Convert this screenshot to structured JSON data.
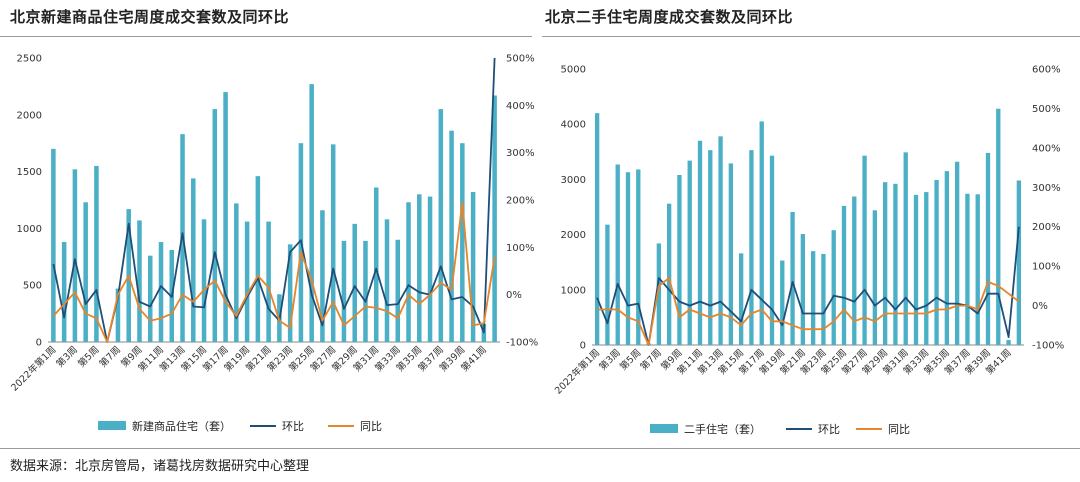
{
  "left_title": "北京新建商品住宅周度成交套数及同环比",
  "right_title": "北京二手住宅周度成交套数及同环比",
  "source": "数据来源：北京房管局，诸葛找房数据研究中心整理",
  "colors": {
    "bar": "#4bafc6",
    "mom": "#1f4e79",
    "yoy": "#e5852c"
  },
  "chart_data": [
    {
      "type": "bar",
      "title": "北京新建商品住宅周度成交套数及同环比",
      "categories": [
        "2022年第1周",
        "第2周",
        "第3周",
        "第4周",
        "第5周",
        "第6周",
        "第7周",
        "第8周",
        "第9周",
        "第10周",
        "第11周",
        "第12周",
        "第13周",
        "第14周",
        "第15周",
        "第16周",
        "第17周",
        "第18周",
        "第19周",
        "第20周",
        "第21周",
        "第22周",
        "第23周",
        "第24周",
        "第25周",
        "第26周",
        "第27周",
        "第28周",
        "第29周",
        "第30周",
        "第31周",
        "第32周",
        "第33周",
        "第34周",
        "第35周",
        "第36周",
        "第37周",
        "第38周",
        "第39周",
        "第40周",
        "第41周",
        "第42周"
      ],
      "x_tick_labels": [
        "2022年第1周",
        "第3周",
        "第5周",
        "第7周",
        "第9周",
        "第11周",
        "第13周",
        "第15周",
        "第17周",
        "第19周",
        "第21周",
        "第23周",
        "第25周",
        "第27周",
        "第29周",
        "第31周",
        "第33周",
        "第35周",
        "第37周",
        "第39周",
        "第41周"
      ],
      "ylim_left": [
        0,
        2500
      ],
      "yticks_left": [
        0,
        500,
        1000,
        1500,
        2000,
        2500
      ],
      "ylim_right": [
        -100,
        500
      ],
      "yticks_right": [
        "-100%",
        "0%",
        "100%",
        "200%",
        "300%",
        "400%",
        "500%"
      ],
      "yticks_right_values": [
        -100,
        0,
        100,
        200,
        300,
        400,
        500
      ],
      "series": [
        {
          "name": "新建商品住宅（套）",
          "kind": "bar",
          "axis": "left",
          "values": [
            1700,
            880,
            1520,
            1230,
            1550,
            0,
            470,
            1170,
            1070,
            760,
            880,
            810,
            1830,
            1440,
            1080,
            2050,
            2200,
            1220,
            1060,
            1460,
            1060,
            420,
            860,
            1750,
            2270,
            1160,
            1740,
            890,
            1040,
            890,
            1360,
            1080,
            900,
            1230,
            1300,
            1280,
            2050,
            1860,
            1750,
            1320,
            160,
            2170
          ]
        },
        {
          "name": "环比",
          "kind": "line",
          "axis": "right",
          "values": [
            65,
            -48,
            75,
            -20,
            10,
            -100,
            -5,
            150,
            -15,
            -25,
            18,
            -5,
            130,
            -25,
            -27,
            90,
            0,
            -50,
            -5,
            35,
            -30,
            -55,
            90,
            115,
            0,
            -65,
            55,
            -30,
            18,
            -15,
            55,
            -22,
            -20,
            20,
            5,
            0,
            60,
            -10,
            -5,
            -25,
            -80,
            500
          ]
        },
        {
          "name": "同比",
          "kind": "line",
          "axis": "right",
          "values": [
            -45,
            -20,
            5,
            -40,
            -50,
            -100,
            0,
            40,
            -30,
            -55,
            -50,
            -40,
            0,
            -15,
            10,
            30,
            -15,
            -45,
            0,
            40,
            15,
            -55,
            -70,
            90,
            30,
            -55,
            -15,
            -65,
            -45,
            -25,
            -28,
            -35,
            -50,
            0,
            -20,
            0,
            25,
            10,
            195,
            -65,
            -60,
            80
          ]
        }
      ]
    },
    {
      "type": "bar",
      "title": "北京二手住宅周度成交套数及同环比",
      "categories": [
        "2022年第1周",
        "第2周",
        "第3周",
        "第4周",
        "第5周",
        "第6周",
        "第7周",
        "第8周",
        "第9周",
        "第10周",
        "第11周",
        "第12周",
        "第13周",
        "第14周",
        "第15周",
        "第16周",
        "第17周",
        "第18周",
        "第19周",
        "第20周",
        "第21周",
        "第22周",
        "第23周",
        "第24周",
        "第25周",
        "第26周",
        "第27周",
        "第28周",
        "第29周",
        "第30周",
        "第31周",
        "第32周",
        "第33周",
        "第34周",
        "第35周",
        "第36周",
        "第37周",
        "第38周",
        "第39周",
        "第40周",
        "第41周",
        "第42周"
      ],
      "x_tick_labels": [
        "2022年第1周",
        "第3周",
        "第5周",
        "第7周",
        "第9周",
        "第11周",
        "第13周",
        "第15周",
        "第17周",
        "第19周",
        "第21周",
        "第23周",
        "第25周",
        "第27周",
        "第29周",
        "第31周",
        "第33周",
        "第35周",
        "第37周",
        "第39周",
        "第41周"
      ],
      "ylim_left": [
        0,
        5000
      ],
      "yticks_left": [
        0,
        1000,
        2000,
        3000,
        4000,
        5000
      ],
      "ylim_right": [
        -100,
        600
      ],
      "yticks_right": [
        "-100%",
        "0%",
        "100%",
        "200%",
        "300%",
        "400%",
        "500%",
        "600%"
      ],
      "yticks_right_values": [
        -100,
        0,
        100,
        200,
        300,
        400,
        500,
        600
      ],
      "series": [
        {
          "name": "二手住宅（套）",
          "kind": "bar",
          "axis": "left",
          "values": [
            4200,
            2180,
            3270,
            3130,
            3180,
            30,
            1840,
            2560,
            3080,
            3340,
            3700,
            3530,
            3780,
            3290,
            1660,
            3530,
            4050,
            3430,
            1530,
            2410,
            2010,
            1700,
            1650,
            2080,
            2520,
            2690,
            3430,
            2440,
            2950,
            2920,
            3490,
            2720,
            2770,
            2990,
            3150,
            3320,
            2740,
            2730,
            3480,
            4280,
            90,
            2980
          ]
        },
        {
          "name": "环比",
          "kind": "line",
          "axis": "right",
          "values": [
            20,
            -45,
            55,
            0,
            5,
            -100,
            70,
            40,
            10,
            0,
            10,
            0,
            10,
            -15,
            -40,
            40,
            15,
            -10,
            -50,
            60,
            -20,
            -20,
            -20,
            25,
            20,
            10,
            40,
            0,
            20,
            -10,
            20,
            -10,
            0,
            20,
            5,
            5,
            0,
            -20,
            30,
            30,
            -80,
            200
          ]
        },
        {
          "name": "同比",
          "kind": "line",
          "axis": "right",
          "values": [
            -10,
            -10,
            -10,
            -30,
            -40,
            -100,
            50,
            70,
            -30,
            -10,
            -20,
            -30,
            -20,
            -30,
            -50,
            -20,
            -10,
            -40,
            -40,
            -50,
            -60,
            -60,
            -60,
            -40,
            -10,
            -40,
            -30,
            -40,
            -20,
            -20,
            -20,
            -20,
            -20,
            -10,
            -10,
            0,
            0,
            -10,
            60,
            50,
            30,
            10
          ]
        }
      ]
    }
  ]
}
